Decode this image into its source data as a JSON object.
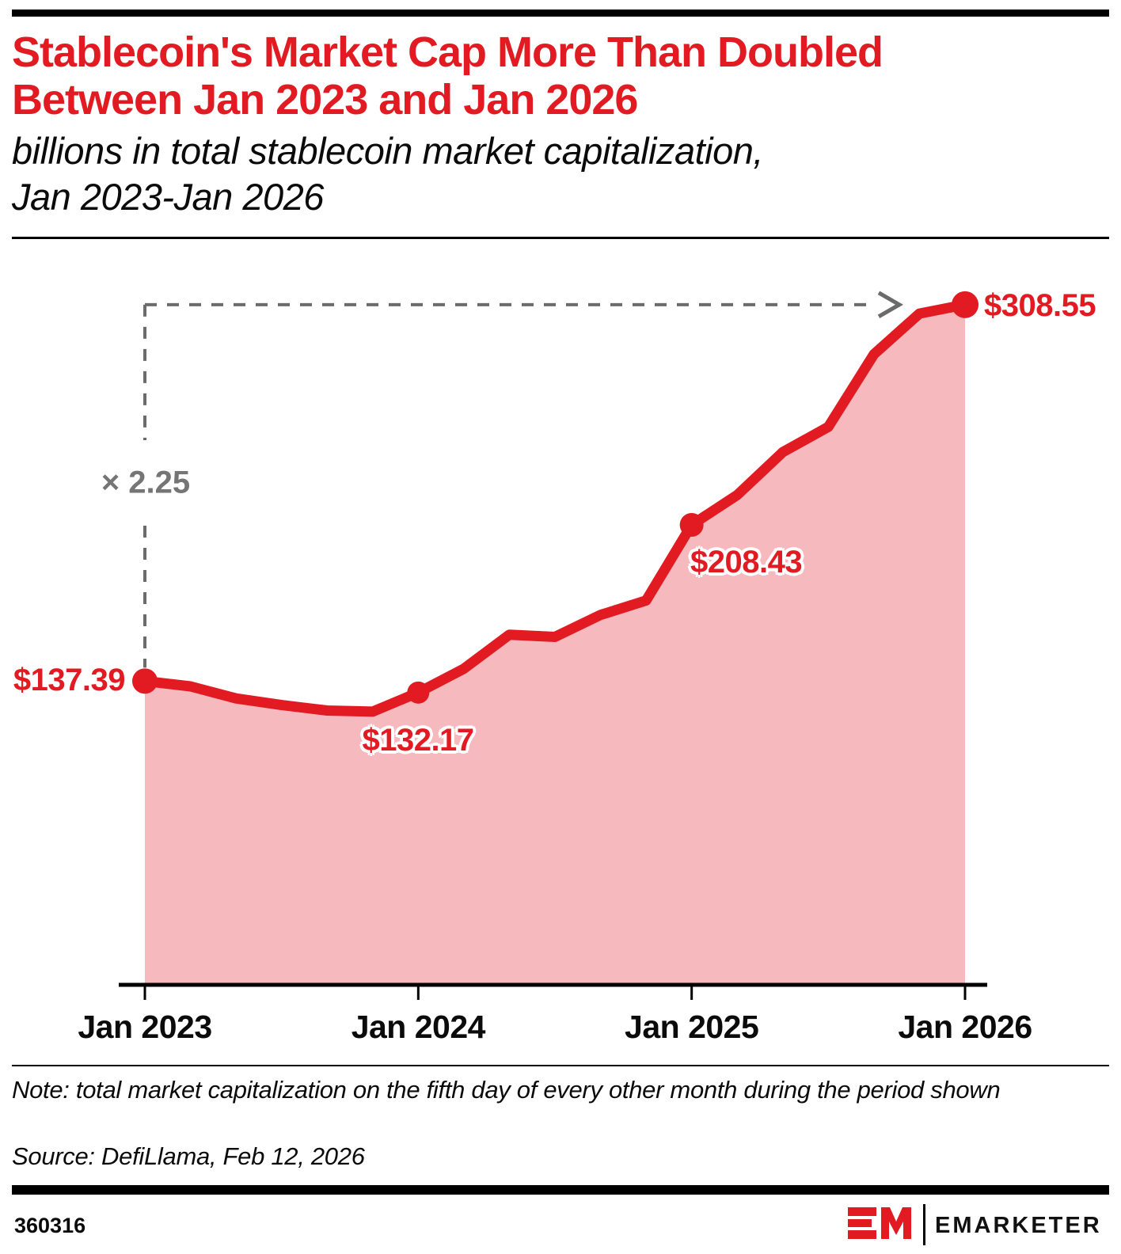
{
  "header": {
    "title_line1": "Stablecoin's Market Cap More Than Doubled",
    "title_line2": "Between Jan 2023 and Jan 2026",
    "subtitle_line1": "billions in total stablecoin market capitalization,",
    "subtitle_line2": "Jan 2023-Jan 2026"
  },
  "chart_data": {
    "type": "area",
    "unit": "USD billions",
    "x": [
      "Jan 2023",
      "Mar 2023",
      "May 2023",
      "Jul 2023",
      "Sep 2023",
      "Nov 2023",
      "Jan 2024",
      "Mar 2024",
      "May 2024",
      "Jul 2024",
      "Sep 2024",
      "Nov 2024",
      "Jan 2025",
      "Mar 2025",
      "May 2025",
      "Jul 2025",
      "Sep 2025",
      "Nov 2025",
      "Jan 2026"
    ],
    "values": [
      137.39,
      135.0,
      129.5,
      126.5,
      124.0,
      123.5,
      132.17,
      143.0,
      158.5,
      157.5,
      167.5,
      174.0,
      208.43,
      222.0,
      241.5,
      253.0,
      286.0,
      304.5,
      308.55
    ],
    "labeled_points": [
      {
        "index": 0,
        "period": "Jan 2023",
        "value": 137.39,
        "label": "$137.39"
      },
      {
        "index": 6,
        "period": "Jan 2024",
        "value": 132.17,
        "label": "$132.17"
      },
      {
        "index": 12,
        "period": "Jan 2025",
        "value": 208.43,
        "label": "$208.43"
      },
      {
        "index": 18,
        "period": "Jan 2026",
        "value": 308.55,
        "label": "$308.55"
      }
    ],
    "multiplier_label": "× 2.25",
    "x_tick_labels": [
      "Jan 2023",
      "Jan 2024",
      "Jan 2025",
      "Jan 2026"
    ],
    "ylim": [
      0,
      320
    ],
    "grid": false,
    "y_axis_visible": false
  },
  "footer": {
    "note": "Note: total market capitalization on the fifth day of every other month during the period shown",
    "source": "Source: DefiLlama, Feb 12, 2026",
    "chart_id": "360316",
    "brand": "EMARKETER"
  },
  "colors": {
    "accent_red": "#E21B23",
    "area_pink": "#F6B9BD",
    "dashed_gray": "#6B6B6B",
    "annotation_gray": "#757575",
    "black": "#000000"
  }
}
